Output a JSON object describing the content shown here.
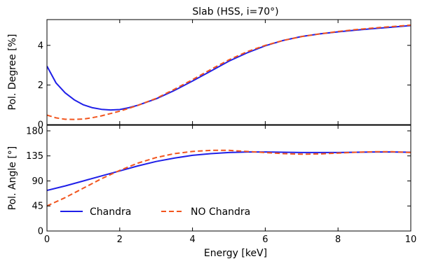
{
  "chart_data": {
    "type": "line",
    "title": "Slab (HSS, i=70°)",
    "xlabel": "Energy [keV]",
    "xlim": [
      0,
      10
    ],
    "x_ticks": [
      "0",
      "2",
      "4",
      "6",
      "8",
      "10"
    ],
    "colors": {
      "Chandra": "#1f1fe8",
      "NO Chandra": "#f2551e"
    },
    "legend": {
      "placement": "lower-left",
      "entries": [
        "Chandra",
        "NO Chandra"
      ]
    },
    "panels": [
      {
        "ylabel": "Pol. Degree [%]",
        "ylim": [
          0,
          5.3
        ],
        "y_ticks": [
          "0",
          "2",
          "4"
        ],
        "series": [
          {
            "name": "Chandra",
            "style": "solid",
            "x": [
              0,
              0.25,
              0.5,
              0.75,
              1,
              1.25,
              1.5,
              1.75,
              2,
              2.25,
              2.5,
              3,
              3.5,
              4,
              4.5,
              5,
              5.5,
              6,
              6.5,
              7,
              7.5,
              8,
              8.5,
              9,
              9.5,
              10
            ],
            "y": [
              2.95,
              2.1,
              1.6,
              1.25,
              1.0,
              0.85,
              0.77,
              0.74,
              0.76,
              0.85,
              0.98,
              1.3,
              1.72,
              2.2,
              2.7,
              3.2,
              3.62,
              3.98,
              4.25,
              4.45,
              4.58,
              4.68,
              4.77,
              4.85,
              4.92,
              5.0
            ]
          },
          {
            "name": "NO Chandra",
            "style": "dashed",
            "x": [
              0,
              0.25,
              0.5,
              0.75,
              1,
              1.25,
              1.5,
              1.75,
              2,
              2.25,
              2.5,
              3,
              3.5,
              4,
              4.5,
              5,
              5.5,
              6,
              6.5,
              7,
              7.5,
              8,
              8.5,
              9,
              9.5,
              10
            ],
            "y": [
              0.48,
              0.34,
              0.27,
              0.26,
              0.28,
              0.35,
              0.44,
              0.56,
              0.68,
              0.82,
              0.97,
              1.32,
              1.78,
              2.27,
              2.78,
              3.27,
              3.68,
              4.0,
              4.25,
              4.44,
              4.58,
              4.7,
              4.8,
              4.88,
              4.95,
              5.02
            ]
          }
        ]
      },
      {
        "ylabel": "Pol. Angle [°]",
        "ylim": [
          0,
          190
        ],
        "y_ticks": [
          "0",
          "45",
          "90",
          "135",
          "180"
        ],
        "series": [
          {
            "name": "Chandra",
            "style": "solid",
            "x": [
              0,
              0.5,
              1,
              1.5,
              2,
              2.5,
              3,
              3.5,
              4,
              4.5,
              5,
              5.5,
              6,
              6.5,
              7,
              7.5,
              8,
              8.5,
              9,
              9.5,
              10
            ],
            "y": [
              73,
              81,
              90,
              99,
              108,
              117,
              125,
              131,
              136,
              139,
              141,
              142,
              142,
              141.5,
              141,
              141,
              141,
              141.5,
              142,
              142,
              141.5
            ]
          },
          {
            "name": "NO Chandra",
            "style": "dashed",
            "x": [
              0,
              0.5,
              1,
              1.5,
              2,
              2.5,
              3,
              3.5,
              4,
              4.5,
              5,
              5.5,
              6,
              6.5,
              7,
              7.5,
              8,
              8.5,
              9,
              9.5,
              10
            ],
            "y": [
              45,
              60,
              77,
              94,
              109,
              122,
              132,
              139,
              143,
              145,
              145,
              143,
              141,
              139,
              138,
              138.5,
              140,
              141.5,
              142.5,
              142.5,
              141
            ]
          }
        ]
      }
    ]
  }
}
